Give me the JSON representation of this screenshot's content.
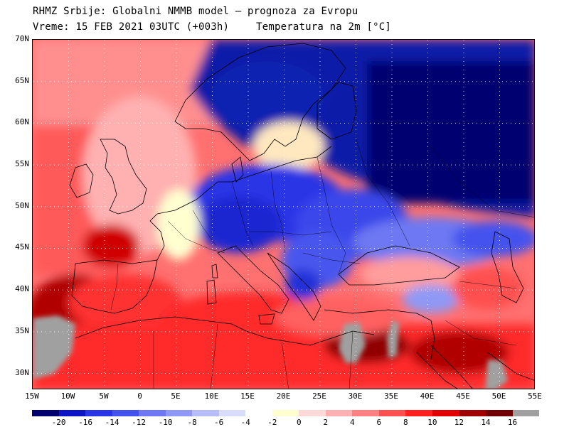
{
  "title": {
    "line1": "RHMZ Srbije: Globalni NMMB model — prognoza za Evropu",
    "time": "Vreme: 15 FEB 2021 03UTC (+003h)",
    "variable": "Temperatura na 2m [°C]"
  },
  "map": {
    "lon_range": [
      -15,
      55
    ],
    "lat_range": [
      28,
      70
    ],
    "lat_ticks": [
      "70N",
      "65N",
      "60N",
      "55N",
      "50N",
      "45N",
      "40N",
      "35N",
      "30N"
    ],
    "lon_ticks": [
      "15W",
      "10W",
      "5W",
      "0",
      "5E",
      "10E",
      "15E",
      "20E",
      "25E",
      "30E",
      "35E",
      "40E",
      "45E",
      "50E",
      "55E"
    ]
  },
  "legend": {
    "labels": [
      "-20",
      "-16",
      "-14",
      "-12",
      "-10",
      "-8",
      "-6",
      "-4",
      "-2",
      "0",
      "2",
      "4",
      "6",
      "8",
      "10",
      "12",
      "14",
      "16"
    ],
    "colors": [
      "#000070",
      "#0b15c4",
      "#2a36e6",
      "#4453ee",
      "#6d78f2",
      "#8f99f5",
      "#b7bdf8",
      "#d9dcfb",
      "#ffffff",
      "#ffffd0",
      "#ffd8d8",
      "#ffb0b0",
      "#ff8080",
      "#ff5050",
      "#ff2020",
      "#e00000",
      "#a00000",
      "#700000",
      "#a0a0a0"
    ]
  }
}
